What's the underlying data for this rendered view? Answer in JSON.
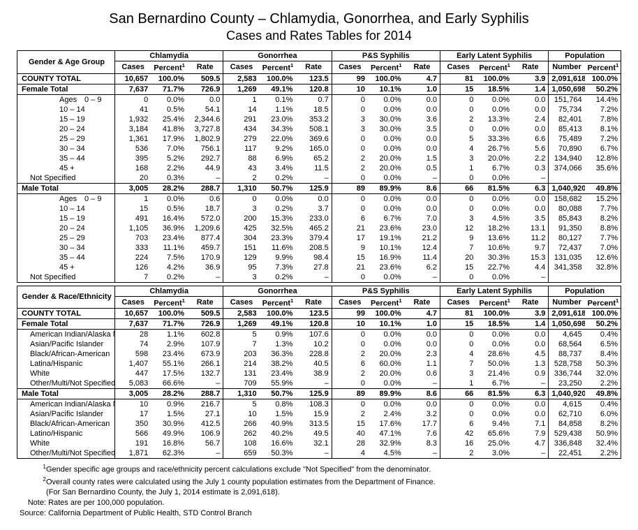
{
  "title_main": "San Bernardino County – Chlamydia, Gonorrhea, and Early Syphilis",
  "title_sub": "Cases and Rates Tables for 2014",
  "col_label_rowhead_age": "Gender & Age Group",
  "col_label_rowhead_eth": "Gender & Race/Ethnicity",
  "group_headers": [
    "Chlamydia",
    "Gonorrhea",
    "P&S Syphilis",
    "Early Latent Syphilis",
    "Population"
  ],
  "sub_cases": "Cases",
  "sub_percent": "Percent",
  "sub_rate": "Rate",
  "sub_number": "Number",
  "county_total_label": "COUNTY TOTAL",
  "female_total_label": "Female Total",
  "male_total_label": "Male Total",
  "ages_label": "Ages",
  "county_total": {
    "cases": [
      "10,657",
      "100.0%",
      "509.5",
      "2,583",
      "100.0%",
      "123.5",
      "99",
      "100.0%",
      "4.7",
      "81",
      "100.0%",
      "3.9",
      "2,091,618",
      "100.0%"
    ]
  },
  "female_total": {
    "cases": [
      "7,637",
      "71.7%",
      "726.9",
      "1,269",
      "49.1%",
      "120.8",
      "10",
      "10.1%",
      "1.0",
      "15",
      "18.5%",
      "1.4",
      "1,050,698",
      "50.2%"
    ]
  },
  "male_total": {
    "cases": [
      "3,005",
      "28.2%",
      "288.7",
      "1,310",
      "50.7%",
      "125.9",
      "89",
      "89.9%",
      "8.6",
      "66",
      "81.5%",
      "6.3",
      "1,040,920",
      "49.8%"
    ]
  },
  "female_age_rows": [
    {
      "label": "0 – 9",
      "v": [
        "0",
        "0.0%",
        "0.0",
        "1",
        "0.1%",
        "0.7",
        "0",
        "0.0%",
        "0.0",
        "0",
        "0.0%",
        "0.0",
        "151,764",
        "14.4%"
      ]
    },
    {
      "label": "10 – 14",
      "v": [
        "41",
        "0.5%",
        "54.1",
        "14",
        "1.1%",
        "18.5",
        "0",
        "0.0%",
        "0.0",
        "0",
        "0.0%",
        "0.0",
        "75,734",
        "7.2%"
      ]
    },
    {
      "label": "15 – 19",
      "v": [
        "1,932",
        "25.4%",
        "2,344.6",
        "291",
        "23.0%",
        "353.2",
        "3",
        "30.0%",
        "3.6",
        "2",
        "13.3%",
        "2.4",
        "82,401",
        "7.8%"
      ]
    },
    {
      "label": "20 – 24",
      "v": [
        "3,184",
        "41.8%",
        "3,727.8",
        "434",
        "34.3%",
        "508.1",
        "3",
        "30.0%",
        "3.5",
        "0",
        "0.0%",
        "0.0",
        "85,413",
        "8.1%"
      ]
    },
    {
      "label": "25 – 29",
      "v": [
        "1,361",
        "17.9%",
        "1,802.9",
        "279",
        "22.0%",
        "369.6",
        "0",
        "0.0%",
        "0.0",
        "5",
        "33.3%",
        "6.6",
        "75,489",
        "7.2%"
      ]
    },
    {
      "label": "30 – 34",
      "v": [
        "536",
        "7.0%",
        "756.1",
        "117",
        "9.2%",
        "165.0",
        "0",
        "0.0%",
        "0.0",
        "4",
        "26.7%",
        "5.6",
        "70,890",
        "6.7%"
      ]
    },
    {
      "label": "35 – 44",
      "v": [
        "395",
        "5.2%",
        "292.7",
        "88",
        "6.9%",
        "65.2",
        "2",
        "20.0%",
        "1.5",
        "3",
        "20.0%",
        "2.2",
        "134,940",
        "12.8%"
      ]
    },
    {
      "label": "45 +",
      "v": [
        "168",
        "2.2%",
        "44.9",
        "43",
        "3.4%",
        "11.5",
        "2",
        "20.0%",
        "0.5",
        "1",
        "6.7%",
        "0.3",
        "374,066",
        "35.6%"
      ]
    },
    {
      "label": "Not Specified",
      "v": [
        "20",
        "0.3%",
        "–",
        "2",
        "0.2%",
        "–",
        "0",
        "0.0%",
        "–",
        "0",
        "0.0%",
        "–",
        "",
        ""
      ]
    }
  ],
  "male_age_rows": [
    {
      "label": "0 – 9",
      "v": [
        "1",
        "0.0%",
        "0.6",
        "0",
        "0.0%",
        "0.0",
        "0",
        "0.0%",
        "0.0",
        "0",
        "0.0%",
        "0.0",
        "158,682",
        "15.2%"
      ]
    },
    {
      "label": "10 – 14",
      "v": [
        "15",
        "0.5%",
        "18.7",
        "3",
        "0.2%",
        "3.7",
        "0",
        "0.0%",
        "0.0",
        "0",
        "0.0%",
        "0.0",
        "80,088",
        "7.7%"
      ]
    },
    {
      "label": "15 – 19",
      "v": [
        "491",
        "16.4%",
        "572.0",
        "200",
        "15.3%",
        "233.0",
        "6",
        "6.7%",
        "7.0",
        "3",
        "4.5%",
        "3.5",
        "85,843",
        "8.2%"
      ]
    },
    {
      "label": "20 – 24",
      "v": [
        "1,105",
        "36.9%",
        "1,209.6",
        "425",
        "32.5%",
        "465.2",
        "21",
        "23.6%",
        "23.0",
        "12",
        "18.2%",
        "13.1",
        "91,350",
        "8.8%"
      ]
    },
    {
      "label": "25 – 29",
      "v": [
        "703",
        "23.4%",
        "877.4",
        "304",
        "23.3%",
        "379.4",
        "17",
        "19.1%",
        "21.2",
        "9",
        "13.6%",
        "11.2",
        "80,127",
        "7.7%"
      ]
    },
    {
      "label": "30 – 34",
      "v": [
        "333",
        "11.1%",
        "459.7",
        "151",
        "11.6%",
        "208.5",
        "9",
        "10.1%",
        "12.4",
        "7",
        "10.6%",
        "9.7",
        "72,437",
        "7.0%"
      ]
    },
    {
      "label": "35 – 44",
      "v": [
        "224",
        "7.5%",
        "170.9",
        "129",
        "9.9%",
        "98.4",
        "15",
        "16.9%",
        "11.4",
        "20",
        "30.3%",
        "15.3",
        "131,035",
        "12.6%"
      ]
    },
    {
      "label": "45 +",
      "v": [
        "126",
        "4.2%",
        "36.9",
        "95",
        "7.3%",
        "27.8",
        "21",
        "23.6%",
        "6.2",
        "15",
        "22.7%",
        "4.4",
        "341,358",
        "32.8%"
      ]
    },
    {
      "label": "Not Specified",
      "v": [
        "7",
        "0.2%",
        "–",
        "3",
        "0.2%",
        "–",
        "0",
        "0.0%",
        "–",
        "0",
        "0.0%",
        "–",
        "",
        ""
      ]
    }
  ],
  "female_eth_rows": [
    {
      "label": "American Indian/Alaska Native",
      "v": [
        "28",
        "1.1%",
        "602.8",
        "5",
        "0.9%",
        "107.6",
        "0",
        "0.0%",
        "0.0",
        "0",
        "0.0%",
        "0.0",
        "4,645",
        "0.4%"
      ]
    },
    {
      "label": "Asian/Pacific Islander",
      "v": [
        "74",
        "2.9%",
        "107.9",
        "7",
        "1.3%",
        "10.2",
        "0",
        "0.0%",
        "0.0",
        "0",
        "0.0%",
        "0.0",
        "68,564",
        "6.5%"
      ]
    },
    {
      "label": "Black/African-American",
      "v": [
        "598",
        "23.4%",
        "673.9",
        "203",
        "36.3%",
        "228.8",
        "2",
        "20.0%",
        "2.3",
        "4",
        "28.6%",
        "4.5",
        "88,737",
        "8.4%"
      ]
    },
    {
      "label": "Latina/Hispanic",
      "v": [
        "1,407",
        "55.1%",
        "266.1",
        "214",
        "38.2%",
        "40.5",
        "6",
        "60.0%",
        "1.1",
        "7",
        "50.0%",
        "1.3",
        "528,758",
        "50.3%"
      ]
    },
    {
      "label": "White",
      "v": [
        "447",
        "17.5%",
        "132.7",
        "131",
        "23.4%",
        "38.9",
        "2",
        "20.0%",
        "0.6",
        "3",
        "21.4%",
        "0.9",
        "336,744",
        "32.0%"
      ]
    },
    {
      "label": "Other/Multi/Not Specified",
      "v": [
        "5,083",
        "66.6%",
        "–",
        "709",
        "55.9%",
        "–",
        "0",
        "0.0%",
        "–",
        "1",
        "6.7%",
        "–",
        "23,250",
        "2.2%"
      ]
    }
  ],
  "male_eth_rows": [
    {
      "label": "American Indian/Alaska Native",
      "v": [
        "10",
        "0.9%",
        "216.7",
        "5",
        "0.8%",
        "108.3",
        "0",
        "0.0%",
        "0.0",
        "0",
        "0.0%",
        "0.0",
        "4,615",
        "0.4%"
      ]
    },
    {
      "label": "Asian/Pacific Islander",
      "v": [
        "17",
        "1.5%",
        "27.1",
        "10",
        "1.5%",
        "15.9",
        "2",
        "2.4%",
        "3.2",
        "0",
        "0.0%",
        "0.0",
        "62,710",
        "6.0%"
      ]
    },
    {
      "label": "Black/African-American",
      "v": [
        "350",
        "30.9%",
        "412.5",
        "266",
        "40.9%",
        "313.5",
        "15",
        "17.6%",
        "17.7",
        "6",
        "9.4%",
        "7.1",
        "84,858",
        "8.2%"
      ]
    },
    {
      "label": "Latino/Hispanic",
      "v": [
        "566",
        "49.9%",
        "106.9",
        "262",
        "40.2%",
        "49.5",
        "40",
        "47.1%",
        "7.6",
        "42",
        "65.6%",
        "7.9",
        "529,438",
        "50.9%"
      ]
    },
    {
      "label": "White",
      "v": [
        "191",
        "16.8%",
        "56.7",
        "108",
        "16.6%",
        "32.1",
        "28",
        "32.9%",
        "8.3",
        "16",
        "25.0%",
        "4.7",
        "336,848",
        "32.4%"
      ]
    },
    {
      "label": "Other/Multi/Not Specified",
      "v": [
        "1,871",
        "62.3%",
        "–",
        "659",
        "50.3%",
        "–",
        "4",
        "4.5%",
        "–",
        "2",
        "3.0%",
        "–",
        "22,451",
        "2.2%"
      ]
    }
  ],
  "footnotes": {
    "n1": "Gender specific age groups and race/ethnicity percent calculations exclude \"Not Specified\" from the denominator.",
    "n2a": "Overall county rates were calculated using the July 1 county population estimates from the Department of Finance.",
    "n2b": "(For San Bernardino County, the July 1, 2014 estimate is 2,091,618).",
    "note_label": "Note:",
    "note": "Rates are per 100,000 population.",
    "source_label": "Source:",
    "source": "California Department of Public Health, STD Control Branch"
  },
  "style": {
    "title_fontsize_pt": 20,
    "subtitle_fontsize_pt": 18,
    "body_fontsize_pt": 11,
    "background_color": "#ffffff",
    "text_color": "#000000",
    "border_color": "#000000"
  }
}
